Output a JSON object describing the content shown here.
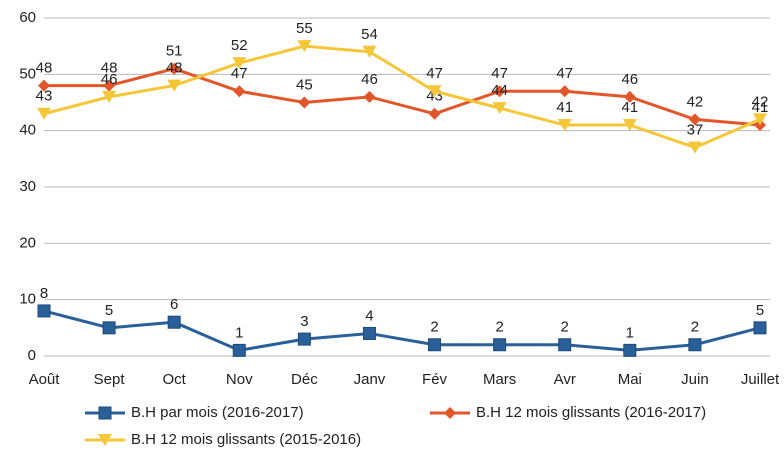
{
  "chart_data": {
    "type": "line",
    "categories": [
      "Août",
      "Sept",
      "Oct",
      "Nov",
      "Déc",
      "Janv",
      "Fév",
      "Mars",
      "Avr",
      "Mai",
      "Juin",
      "Juillet"
    ],
    "series": [
      {
        "name": "B.H par mois (2016-2017)",
        "color": "#2a6099",
        "marker": "square",
        "values": [
          8,
          5,
          6,
          1,
          3,
          4,
          2,
          2,
          2,
          1,
          2,
          5
        ]
      },
      {
        "name": "B.H 12 mois glissants (2016-2017)",
        "color": "#e2562a",
        "marker": "diamond",
        "values": [
          48,
          48,
          51,
          47,
          45,
          46,
          43,
          47,
          47,
          46,
          42,
          41
        ]
      },
      {
        "name": "B.H 12 mois glissants (2015-2016)",
        "color": "#f5c637",
        "marker": "triangle",
        "values": [
          43,
          46,
          48,
          52,
          55,
          54,
          47,
          44,
          41,
          41,
          37,
          42
        ]
      }
    ],
    "ylim": [
      0,
      60
    ],
    "yticks": [
      0,
      10,
      20,
      30,
      40,
      50,
      60
    ],
    "grid": true
  }
}
